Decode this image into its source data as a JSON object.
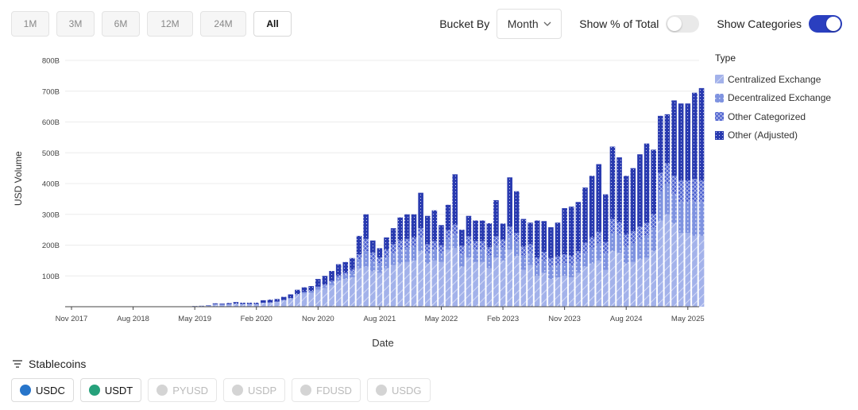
{
  "range_buttons": [
    {
      "label": "1M",
      "active": false
    },
    {
      "label": "3M",
      "active": false
    },
    {
      "label": "6M",
      "active": false
    },
    {
      "label": "12M",
      "active": false
    },
    {
      "label": "24M",
      "active": false
    },
    {
      "label": "All",
      "active": true
    }
  ],
  "controls": {
    "bucket_label": "Bucket By",
    "bucket_value": "Month",
    "pct_label": "Show % of Total",
    "pct_on": false,
    "cat_label": "Show Categories",
    "cat_on": true
  },
  "stablecoins": {
    "header": "Stablecoins",
    "coins": [
      {
        "label": "USDC",
        "active": true,
        "icon": "usdc-icon",
        "color": "#2775ca"
      },
      {
        "label": "USDT",
        "active": true,
        "icon": "usdt-icon",
        "color": "#26a17b"
      },
      {
        "label": "PYUSD",
        "active": false,
        "icon": "pyusd-icon",
        "color": "#d0d0d0"
      },
      {
        "label": "USDP",
        "active": false,
        "icon": "usdp-icon",
        "color": "#d0d0d0"
      },
      {
        "label": "FDUSD",
        "active": false,
        "icon": "fdusd-icon",
        "color": "#d0d0d0"
      },
      {
        "label": "USDG",
        "active": false,
        "icon": "usdg-icon",
        "color": "#d0d0d0"
      }
    ]
  },
  "chart_data": {
    "type": "bar",
    "stacked": true,
    "xlabel": "Date",
    "ylabel": "USD Volume",
    "ylim": [
      0,
      800
    ],
    "y_unit": "B",
    "y_ticks": [
      "100B",
      "200B",
      "300B",
      "400B",
      "500B",
      "600B",
      "700B",
      "800B"
    ],
    "x_ticks": [
      "Nov 2017",
      "Aug 2018",
      "May 2019",
      "Feb 2020",
      "Nov 2020",
      "Aug 2021",
      "May 2022",
      "Feb 2023",
      "Nov 2023",
      "Aug 2024",
      "May 2025"
    ],
    "x_tick_month_index": [
      0,
      9,
      18,
      27,
      36,
      45,
      54,
      63,
      72,
      81,
      90
    ],
    "grid": true,
    "legend_title": "Type",
    "legend_position": "right",
    "x_start": "Nov 2017",
    "x_end": "Jun 2025",
    "series": [
      {
        "name": "Centralized Exchange",
        "color": "#a3b2ea",
        "values": [
          0,
          0,
          0,
          0,
          0,
          0,
          0,
          0,
          0,
          0,
          0,
          0,
          0,
          0,
          0,
          0,
          0,
          0,
          1,
          2,
          3,
          7,
          6,
          7,
          9,
          8,
          8,
          8,
          12,
          12,
          15,
          20,
          25,
          37,
          43,
          45,
          55,
          60,
          70,
          85,
          90,
          95,
          125,
          130,
          115,
          110,
          125,
          135,
          140,
          145,
          150,
          180,
          140,
          150,
          145,
          185,
          190,
          130,
          160,
          145,
          145,
          125,
          160,
          150,
          185,
          165,
          120,
          135,
          100,
          110,
          90,
          95,
          100,
          95,
          110,
          130,
          140,
          150,
          120,
          180,
          175,
          140,
          145,
          155,
          160,
          180,
          280,
          300,
          270,
          240,
          240,
          230,
          230
        ]
      },
      {
        "name": "Decentralized Exchange",
        "color": "#7f93e0",
        "values": [
          0,
          0,
          0,
          0,
          0,
          0,
          0,
          0,
          0,
          0,
          0,
          0,
          0,
          0,
          0,
          0,
          0,
          0,
          0,
          0,
          1,
          1,
          1,
          1,
          1,
          1,
          1,
          1,
          1,
          2,
          2,
          2,
          3,
          4,
          5,
          6,
          8,
          9,
          10,
          12,
          15,
          18,
          30,
          50,
          35,
          30,
          35,
          40,
          45,
          45,
          45,
          45,
          35,
          35,
          30,
          35,
          45,
          40,
          40,
          40,
          40,
          40,
          40,
          40,
          45,
          45,
          45,
          40,
          35,
          40,
          40,
          40,
          40,
          40,
          40,
          45,
          50,
          55,
          55,
          60,
          60,
          55,
          60,
          65,
          70,
          75,
          95,
          100,
          95,
          100,
          100,
          110,
          110
        ]
      },
      {
        "name": "Other Categorized",
        "color": "#4a5fcf",
        "values": [
          0,
          0,
          0,
          0,
          0,
          0,
          0,
          0,
          0,
          0,
          0,
          0,
          0,
          0,
          0,
          0,
          0,
          0,
          0,
          0,
          0,
          0,
          0,
          0,
          0,
          0,
          0,
          0,
          0,
          0,
          0,
          0,
          0,
          0,
          0,
          0,
          2,
          3,
          4,
          5,
          6,
          8,
          15,
          40,
          25,
          20,
          25,
          28,
          30,
          30,
          30,
          30,
          28,
          28,
          25,
          28,
          32,
          28,
          28,
          28,
          28,
          28,
          28,
          28,
          30,
          30,
          30,
          28,
          25,
          28,
          28,
          28,
          30,
          30,
          30,
          32,
          35,
          38,
          35,
          45,
          40,
          40,
          40,
          40,
          42,
          45,
          60,
          65,
          60,
          70,
          70,
          75,
          70
        ]
      },
      {
        "name": "Other (Adjusted)",
        "color": "#2a3bb0",
        "values": [
          0,
          0,
          0,
          0,
          0,
          0,
          0,
          0,
          0,
          0,
          0,
          0,
          0,
          0,
          0,
          0,
          0,
          0,
          1,
          1,
          1,
          3,
          3,
          4,
          5,
          4,
          4,
          4,
          8,
          9,
          8,
          10,
          12,
          14,
          15,
          16,
          25,
          28,
          32,
          36,
          34,
          37,
          60,
          80,
          40,
          30,
          40,
          52,
          75,
          80,
          75,
          115,
          92,
          100,
          65,
          83,
          163,
          52,
          67,
          67,
          67,
          78,
          118,
          52,
          160,
          135,
          90,
          70,
          120,
          100,
          100,
          110,
          150,
          160,
          160,
          180,
          200,
          220,
          155,
          235,
          210,
          190,
          205,
          235,
          258,
          210,
          185,
          160,
          245,
          250,
          250,
          280,
          300
        ]
      }
    ]
  }
}
